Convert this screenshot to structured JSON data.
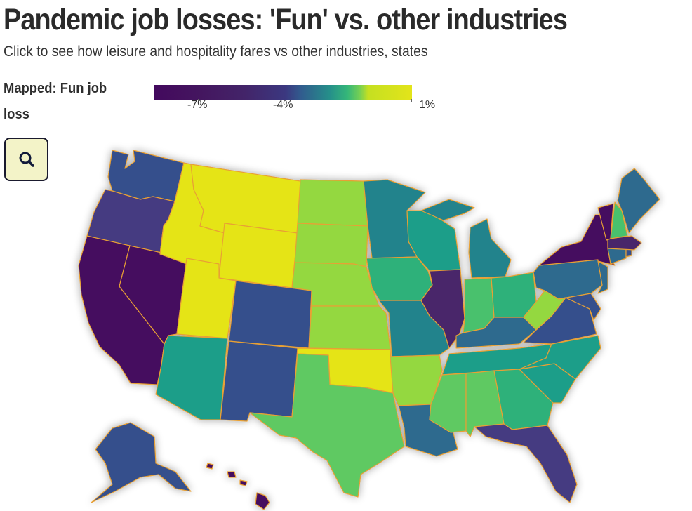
{
  "header": {
    "title": "Pandemic job losses: 'Fun' vs. other industries",
    "subtitle": "Click to see how leisure and hospitality fares vs other industries, states"
  },
  "legend": {
    "label": "Mapped: Fun job loss",
    "ticks": [
      "-7%",
      "-4%",
      "1%"
    ]
  },
  "controls": {
    "search_icon": "search-icon"
  },
  "colors": {
    "c_darkest": "#450b5e",
    "c_purple": "#48256b",
    "c_indigo": "#443a81",
    "c_blue": "#36508c",
    "c_steel": "#2e6a8e",
    "c_teal": "#22838c",
    "c_green_teal": "#1f9e89",
    "c_green": "#2fb17a",
    "c_mint": "#4ac16d",
    "c_lightgreen": "#5ec962",
    "c_lime": "#94d840",
    "c_yellow": "#e5e419",
    "border": "#e8a034"
  }
}
